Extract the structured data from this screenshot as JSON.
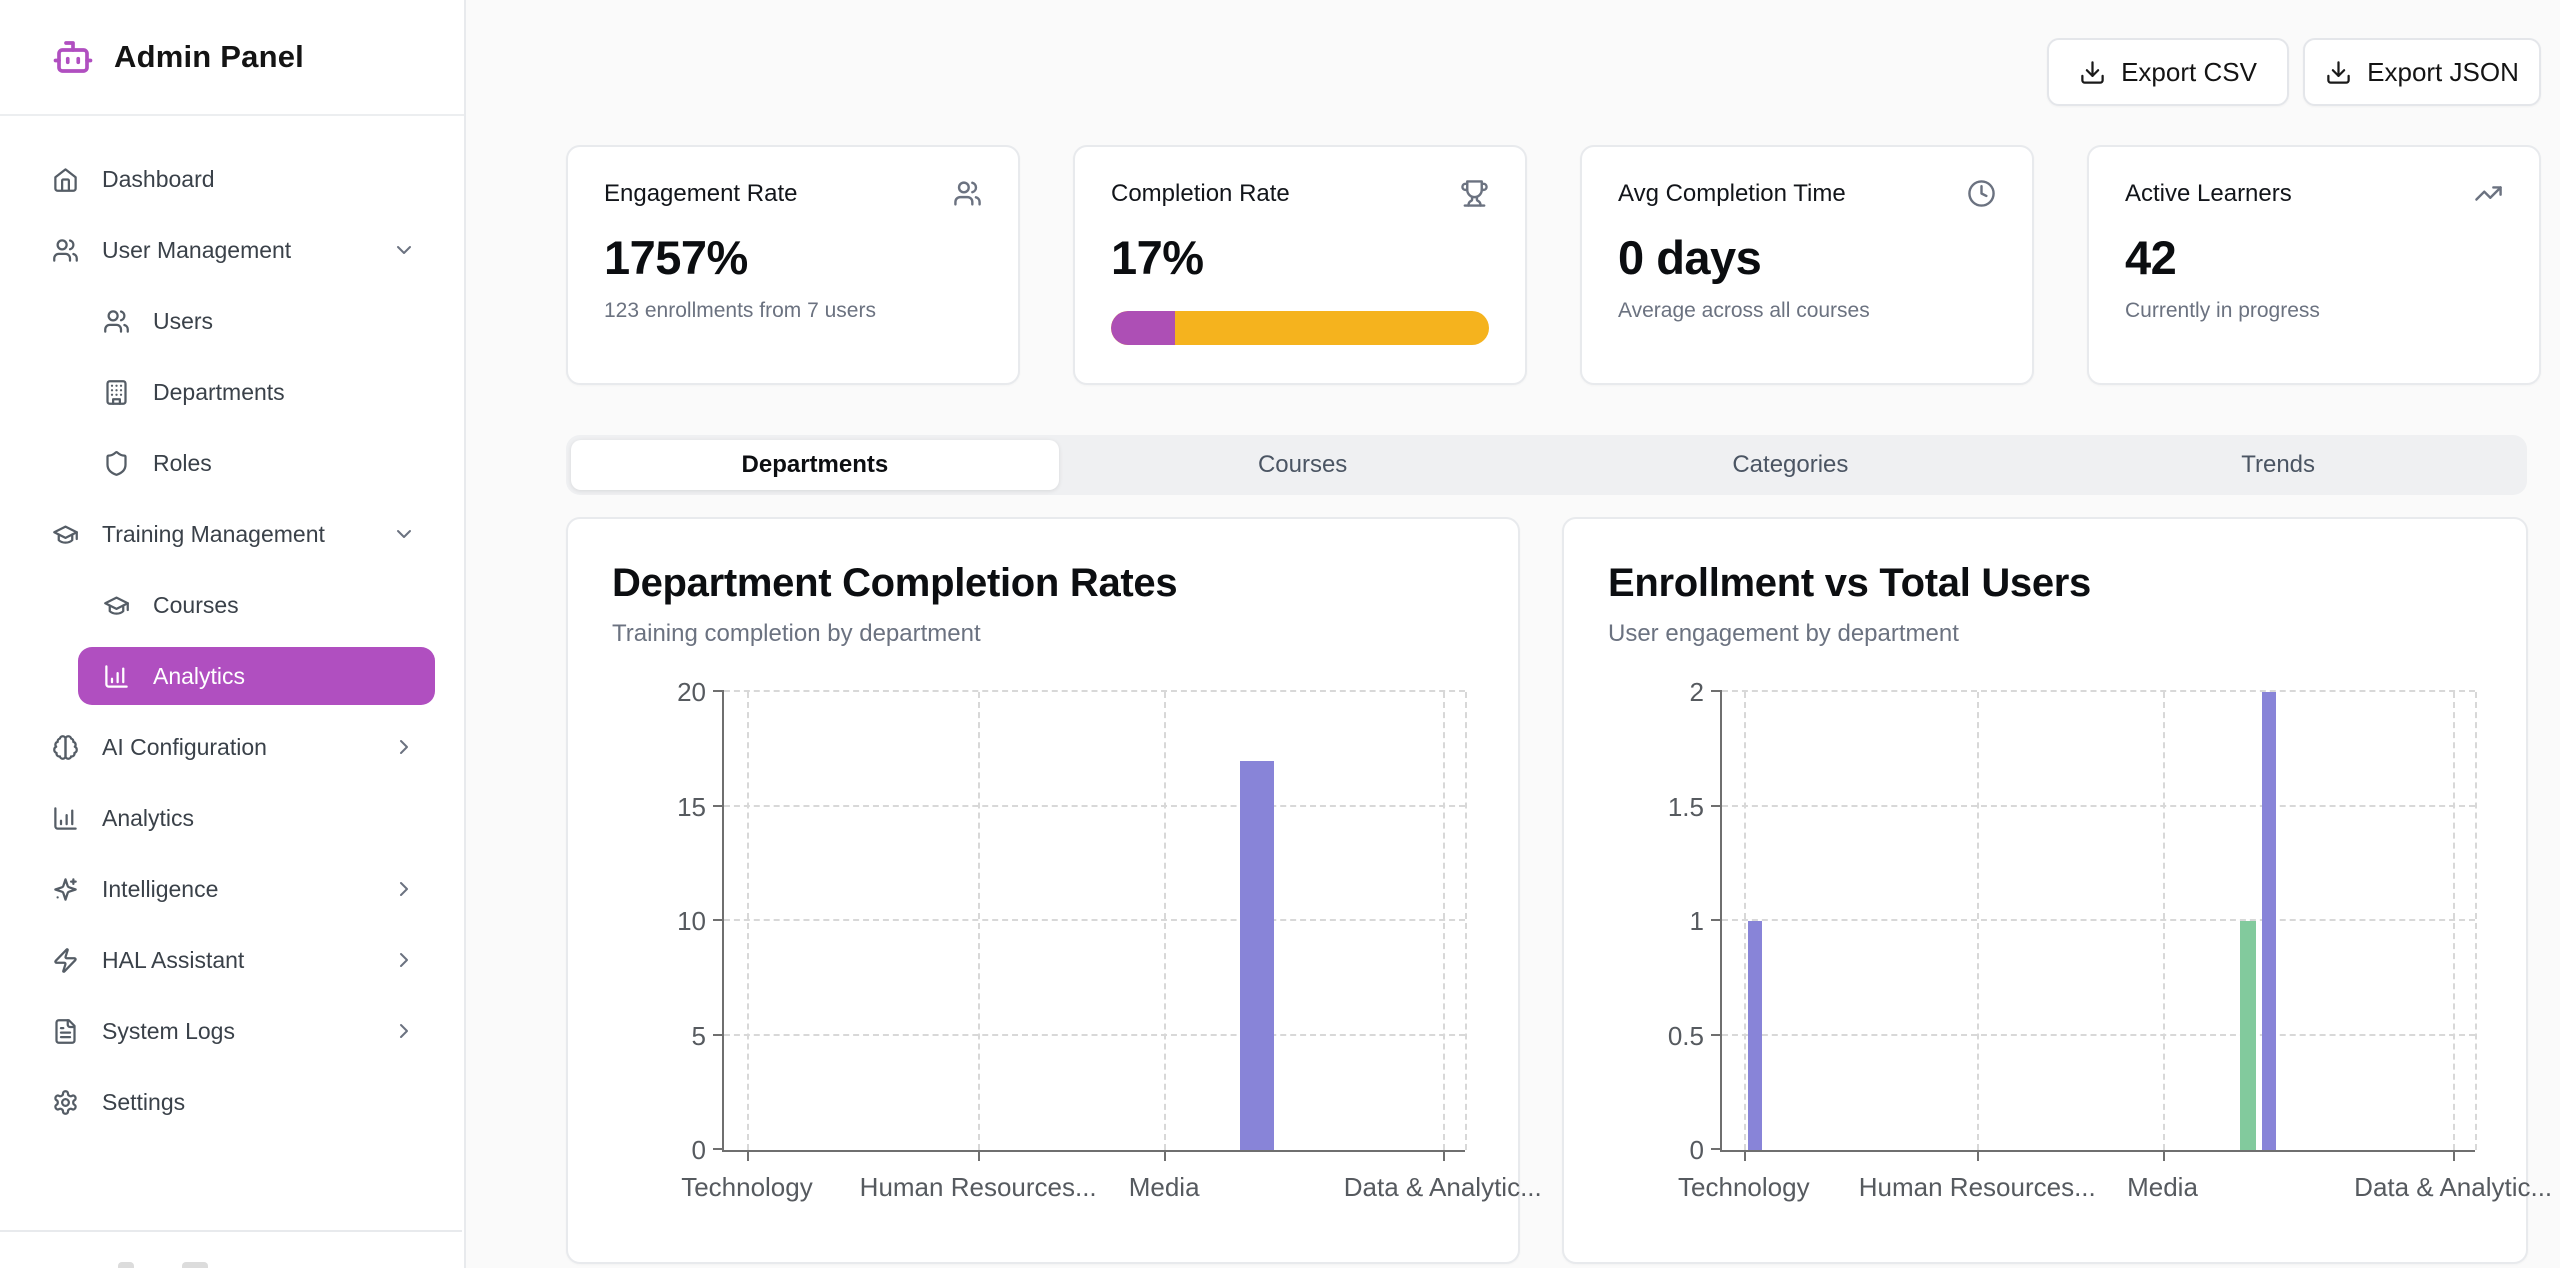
{
  "colors": {
    "accent": "#b04fc0",
    "amber": "#f5b31e",
    "bar_indigo": "#8884d8",
    "bar_green": "#82ca9d"
  },
  "sidebar": {
    "app_title": "Admin Panel",
    "items": [
      {
        "label": "Dashboard",
        "icon": "home-icon"
      },
      {
        "label": "User Management",
        "icon": "users-icon",
        "expander": "chevron-down"
      },
      {
        "label": "Users",
        "icon": "users-icon",
        "sub": true
      },
      {
        "label": "Departments",
        "icon": "building-icon",
        "sub": true
      },
      {
        "label": "Roles",
        "icon": "shield-icon",
        "sub": true
      },
      {
        "label": "Training Management",
        "icon": "graduation-cap-icon",
        "expander": "chevron-down"
      },
      {
        "label": "Courses",
        "icon": "graduation-cap-icon",
        "sub": true
      },
      {
        "label": "Analytics",
        "icon": "bar-chart-icon",
        "sub": true,
        "active": true
      },
      {
        "label": "AI Configuration",
        "icon": "brain-icon",
        "expander": "chevron-right"
      },
      {
        "label": "Analytics",
        "icon": "bar-chart-icon"
      },
      {
        "label": "Intelligence",
        "icon": "sparkles-icon",
        "expander": "chevron-right"
      },
      {
        "label": "HAL Assistant",
        "icon": "zap-icon",
        "expander": "chevron-right"
      },
      {
        "label": "System Logs",
        "icon": "file-text-icon",
        "expander": "chevron-right"
      },
      {
        "label": "Settings",
        "icon": "gear-icon"
      }
    ]
  },
  "header": {
    "export_csv_label": "Export CSV",
    "export_json_label": "Export JSON"
  },
  "stats": [
    {
      "title": "Engagement Rate",
      "icon": "users-icon",
      "value": "1757%",
      "subtitle": "123 enrollments from 7 users"
    },
    {
      "title": "Completion Rate",
      "icon": "trophy-icon",
      "value": "17%",
      "progress_percent": 17
    },
    {
      "title": "Avg Completion Time",
      "icon": "clock-icon",
      "value": "0 days",
      "subtitle": "Average across all courses"
    },
    {
      "title": "Active Learners",
      "icon": "trending-up-icon",
      "value": "42",
      "subtitle": "Currently in progress"
    }
  ],
  "tabs": [
    {
      "label": "Departments",
      "active": true
    },
    {
      "label": "Courses"
    },
    {
      "label": "Categories"
    },
    {
      "label": "Trends"
    }
  ],
  "charts": [
    {
      "title": "Department Completion Rates",
      "subtitle": "Training completion by department",
      "chart_data": {
        "type": "bar",
        "title": "Department Completion Rates",
        "ylim": [
          0,
          20
        ],
        "y_ticks": [
          "0",
          "5",
          "10",
          "15",
          "20"
        ],
        "grid": "dashed",
        "x_ticks": [
          {
            "label": "Technology",
            "pos": 0.031
          },
          {
            "label": "Human Resources...",
            "pos": 0.343
          },
          {
            "label": "Media",
            "pos": 0.594
          },
          {
            "label": "Data & Analytic...",
            "pos": 0.97
          }
        ],
        "bars": [
          {
            "series": "Completion Rate",
            "value": 17,
            "pos": 0.719,
            "width": 34,
            "color": "#8884d8"
          }
        ]
      }
    },
    {
      "title": "Enrollment vs Total Users",
      "subtitle": "User engagement by department",
      "chart_data": {
        "type": "bar",
        "title": "Enrollment vs Total Users",
        "ylim": [
          0,
          2
        ],
        "y_ticks": [
          "0",
          "0.5",
          "1",
          "1.5",
          "2"
        ],
        "grid": "dashed",
        "x_ticks": [
          {
            "label": "Technology",
            "pos": 0.029
          },
          {
            "label": "Human Resources...",
            "pos": 0.339
          },
          {
            "label": "Media",
            "pos": 0.585
          },
          {
            "label": "Data & Analytic...",
            "pos": 0.971
          }
        ],
        "bars": [
          {
            "series": "Total Users",
            "category": "Technology",
            "value": 1,
            "pos": 0.044,
            "width": 14,
            "color": "#8884d8"
          },
          {
            "series": "Enrollments",
            "value": 1,
            "pos": 0.698,
            "width": 16,
            "color": "#82ca9d"
          },
          {
            "series": "Total Users",
            "value": 2,
            "pos": 0.726,
            "width": 14,
            "color": "#8884d8"
          }
        ]
      }
    }
  ]
}
